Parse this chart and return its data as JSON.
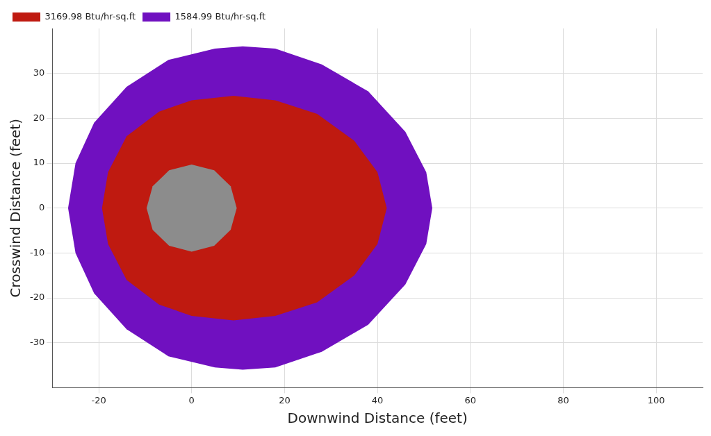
{
  "chart_data": {
    "type": "area",
    "xlabel": "Downwind Distance (feet)",
    "ylabel": "Crosswind Distance (feet)",
    "xlim": [
      -30,
      110
    ],
    "ylim": [
      -40,
      40
    ],
    "xticks": [
      -20,
      0,
      20,
      40,
      60,
      80,
      100
    ],
    "yticks": [
      -30,
      -20,
      -10,
      0,
      10,
      20,
      30
    ],
    "grid": true,
    "legend": "top left",
    "series": [
      {
        "name": "1584.99 Btu/hr-sq.ft",
        "color": "#7010c0",
        "x": [
          -26.6,
          -25,
          -21,
          -14,
          -5,
          5,
          11,
          18,
          28,
          38,
          46,
          50.5,
          51.8,
          50.5,
          46,
          38,
          28,
          18,
          11,
          5,
          -5,
          -14,
          -21,
          -25,
          -26.6
        ],
        "values": [
          0,
          10,
          19,
          27,
          33,
          35.5,
          36,
          35.5,
          32,
          26,
          17,
          8,
          0,
          -8,
          -17,
          -26,
          -32,
          -35.5,
          -36,
          -35.5,
          -33,
          -27,
          -19,
          -10,
          0
        ]
      },
      {
        "name": "3169.98 Btu/hr-sq.ft",
        "color": "#bf1a10",
        "x": [
          -19.3,
          -18,
          -14,
          -7,
          0,
          9,
          18,
          27,
          35,
          40,
          42,
          40,
          35,
          27,
          18,
          9,
          0,
          -7,
          -14,
          -18,
          -19.3
        ],
        "values": [
          0,
          8,
          16,
          21.5,
          24,
          25,
          24,
          21,
          15,
          8,
          0,
          -8,
          -15,
          -21,
          -24,
          -25,
          -24,
          -21.5,
          -16,
          -8,
          0
        ]
      },
      {
        "color": "#8c8c8c",
        "x": [
          9.7,
          8.4,
          4.85,
          0,
          -4.85,
          -8.4,
          -9.7,
          -8.4,
          -4.85,
          0,
          4.85,
          8.4,
          9.7
        ],
        "values": [
          0,
          4.85,
          8.4,
          9.7,
          8.4,
          4.85,
          0,
          -4.85,
          -8.4,
          -9.7,
          -8.4,
          -4.85,
          0
        ]
      }
    ]
  }
}
